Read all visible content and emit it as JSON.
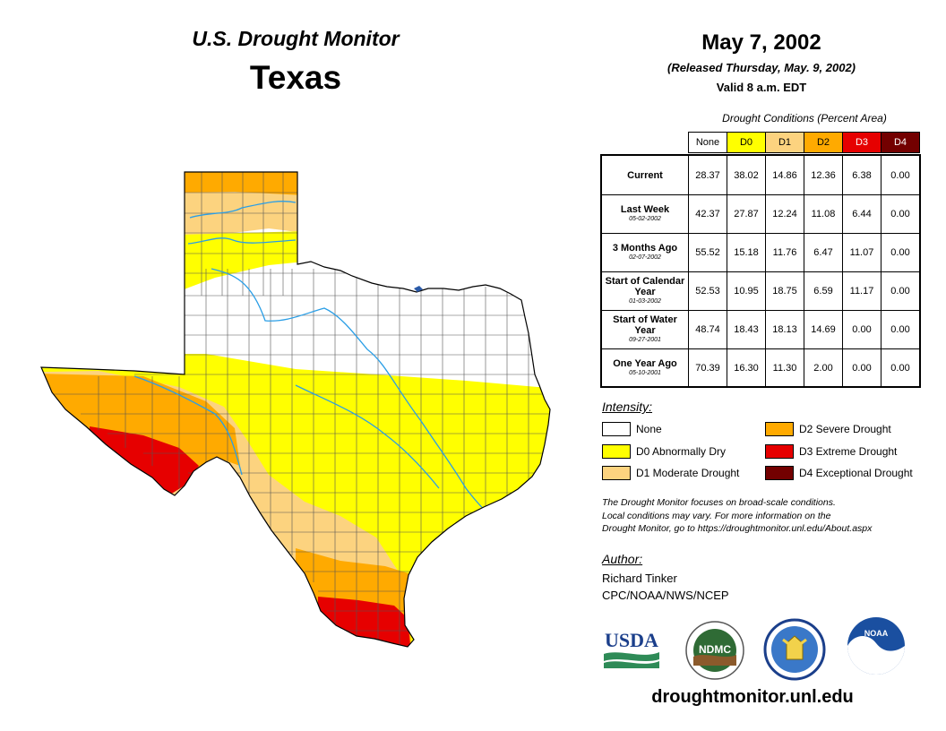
{
  "header": {
    "product": "U.S. Drought Monitor",
    "region": "Texas",
    "date": "May 7, 2002",
    "released": "(Released Thursday, May. 9, 2002)",
    "valid": "Valid 8 a.m. EDT"
  },
  "table": {
    "caption": "Drought Conditions (Percent Area)",
    "columns": [
      {
        "label": "None",
        "color": "#ffffff",
        "text_color": "#000000"
      },
      {
        "label": "D0",
        "color": "#ffff00",
        "text_color": "#000000"
      },
      {
        "label": "D1",
        "color": "#fcd37f",
        "text_color": "#000000"
      },
      {
        "label": "D2",
        "color": "#ffaa00",
        "text_color": "#000000"
      },
      {
        "label": "D3",
        "color": "#e60000",
        "text_color": "#ffffff"
      },
      {
        "label": "D4",
        "color": "#730000",
        "text_color": "#ffffff"
      }
    ],
    "rows": [
      {
        "label": "Current",
        "sub": "",
        "values": [
          "28.37",
          "38.02",
          "14.86",
          "12.36",
          "6.38",
          "0.00"
        ]
      },
      {
        "label": "Last Week",
        "sub": "05-02-2002",
        "values": [
          "42.37",
          "27.87",
          "12.24",
          "11.08",
          "6.44",
          "0.00"
        ]
      },
      {
        "label": "3 Months Ago",
        "sub": "02-07-2002",
        "values": [
          "55.52",
          "15.18",
          "11.76",
          "6.47",
          "11.07",
          "0.00"
        ]
      },
      {
        "label": "Start of Calendar Year",
        "sub": "01-03-2002",
        "values": [
          "52.53",
          "10.95",
          "18.75",
          "6.59",
          "11.17",
          "0.00"
        ]
      },
      {
        "label": "Start of Water Year",
        "sub": "09-27-2001",
        "values": [
          "48.74",
          "18.43",
          "18.13",
          "14.69",
          "0.00",
          "0.00"
        ]
      },
      {
        "label": "One Year Ago",
        "sub": "05-10-2001",
        "values": [
          "70.39",
          "16.30",
          "11.30",
          "2.00",
          "0.00",
          "0.00"
        ]
      }
    ]
  },
  "legend": {
    "title": "Intensity:",
    "items": [
      {
        "label": "None",
        "color": "#ffffff"
      },
      {
        "label": "D0 Abnormally Dry",
        "color": "#ffff00"
      },
      {
        "label": "D1 Moderate Drought",
        "color": "#fcd37f"
      },
      {
        "label": "D2 Severe Drought",
        "color": "#ffaa00"
      },
      {
        "label": "D3 Extreme Drought",
        "color": "#e60000"
      },
      {
        "label": "D4 Exceptional Drought",
        "color": "#730000"
      }
    ]
  },
  "note": {
    "line1": "The Drought Monitor focuses on broad-scale conditions.",
    "line2": "Local conditions may vary. For more information on the",
    "line3": "Drought Monitor, go to https://droughtmonitor.unl.edu/About.aspx"
  },
  "author": {
    "title": "Author:",
    "name": "Richard Tinker",
    "org": "CPC/NOAA/NWS/NCEP"
  },
  "logos": {
    "usda": "USDA",
    "ndmc": "NDMC",
    "noaa": "NOAA"
  },
  "footer": {
    "url": "droughtmonitor.unl.edu"
  }
}
